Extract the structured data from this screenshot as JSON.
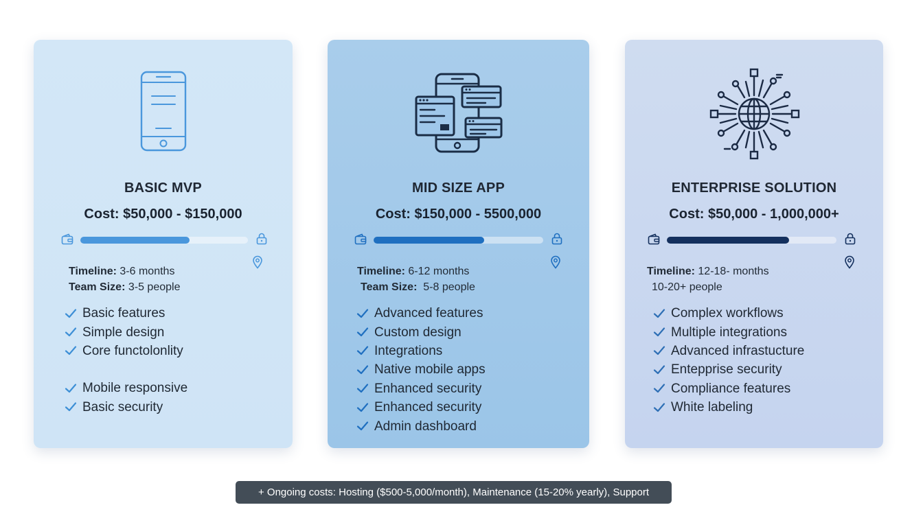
{
  "colors": {
    "basic_accent": "#4a97dc",
    "mid_accent": "#1f6fc0",
    "enterprise_accent": "#14305e",
    "check": "#3d8fd6"
  },
  "tiers": [
    {
      "icon": "smartphone-icon",
      "title": "BASIC MVP",
      "cost": "Cost: $50,000 - $150,000",
      "progress": 0.65,
      "timeline_label": "Timeline:",
      "timeline_value": "3-6 months",
      "team_label": "Team Size:",
      "team_value": "3-5 people",
      "features": [
        "Basic features",
        "Simple design",
        "Core functolonlity",
        "Mobile responsive",
        "Basic security"
      ]
    },
    {
      "icon": "multi-screen-app-icon",
      "title": "MID SIZE APP",
      "cost": "Cost: $150,000 - 5500,000",
      "progress": 0.65,
      "timeline_label": "Timeline:",
      "timeline_value": "6-12 months",
      "team_label": "Team Size:",
      "team_value": "5-8 people",
      "features": [
        "Advanced features",
        "Custom design",
        "Integrations",
        "Native mobile apps",
        "Enhanced security",
        "Enhanced security",
        "Admin dashboard"
      ]
    },
    {
      "icon": "global-network-icon",
      "title": "ENTERPRISE SOLUTION",
      "cost": "Cost: $50,000 - 1,000,000+",
      "progress": 0.72,
      "timeline_label": "Timeline:",
      "timeline_value": "12-18- months",
      "team_value": "10-20+ people",
      "features": [
        "Complex workflows",
        "Multiple integrations",
        "Advanced infrastucture",
        "Entepprise security",
        "Compliance features",
        "White labeling"
      ]
    }
  ],
  "footer_note": "+ Ongoing costs: Hosting ($500-5,000/month), Maintenance (15-20% yearly), Support"
}
